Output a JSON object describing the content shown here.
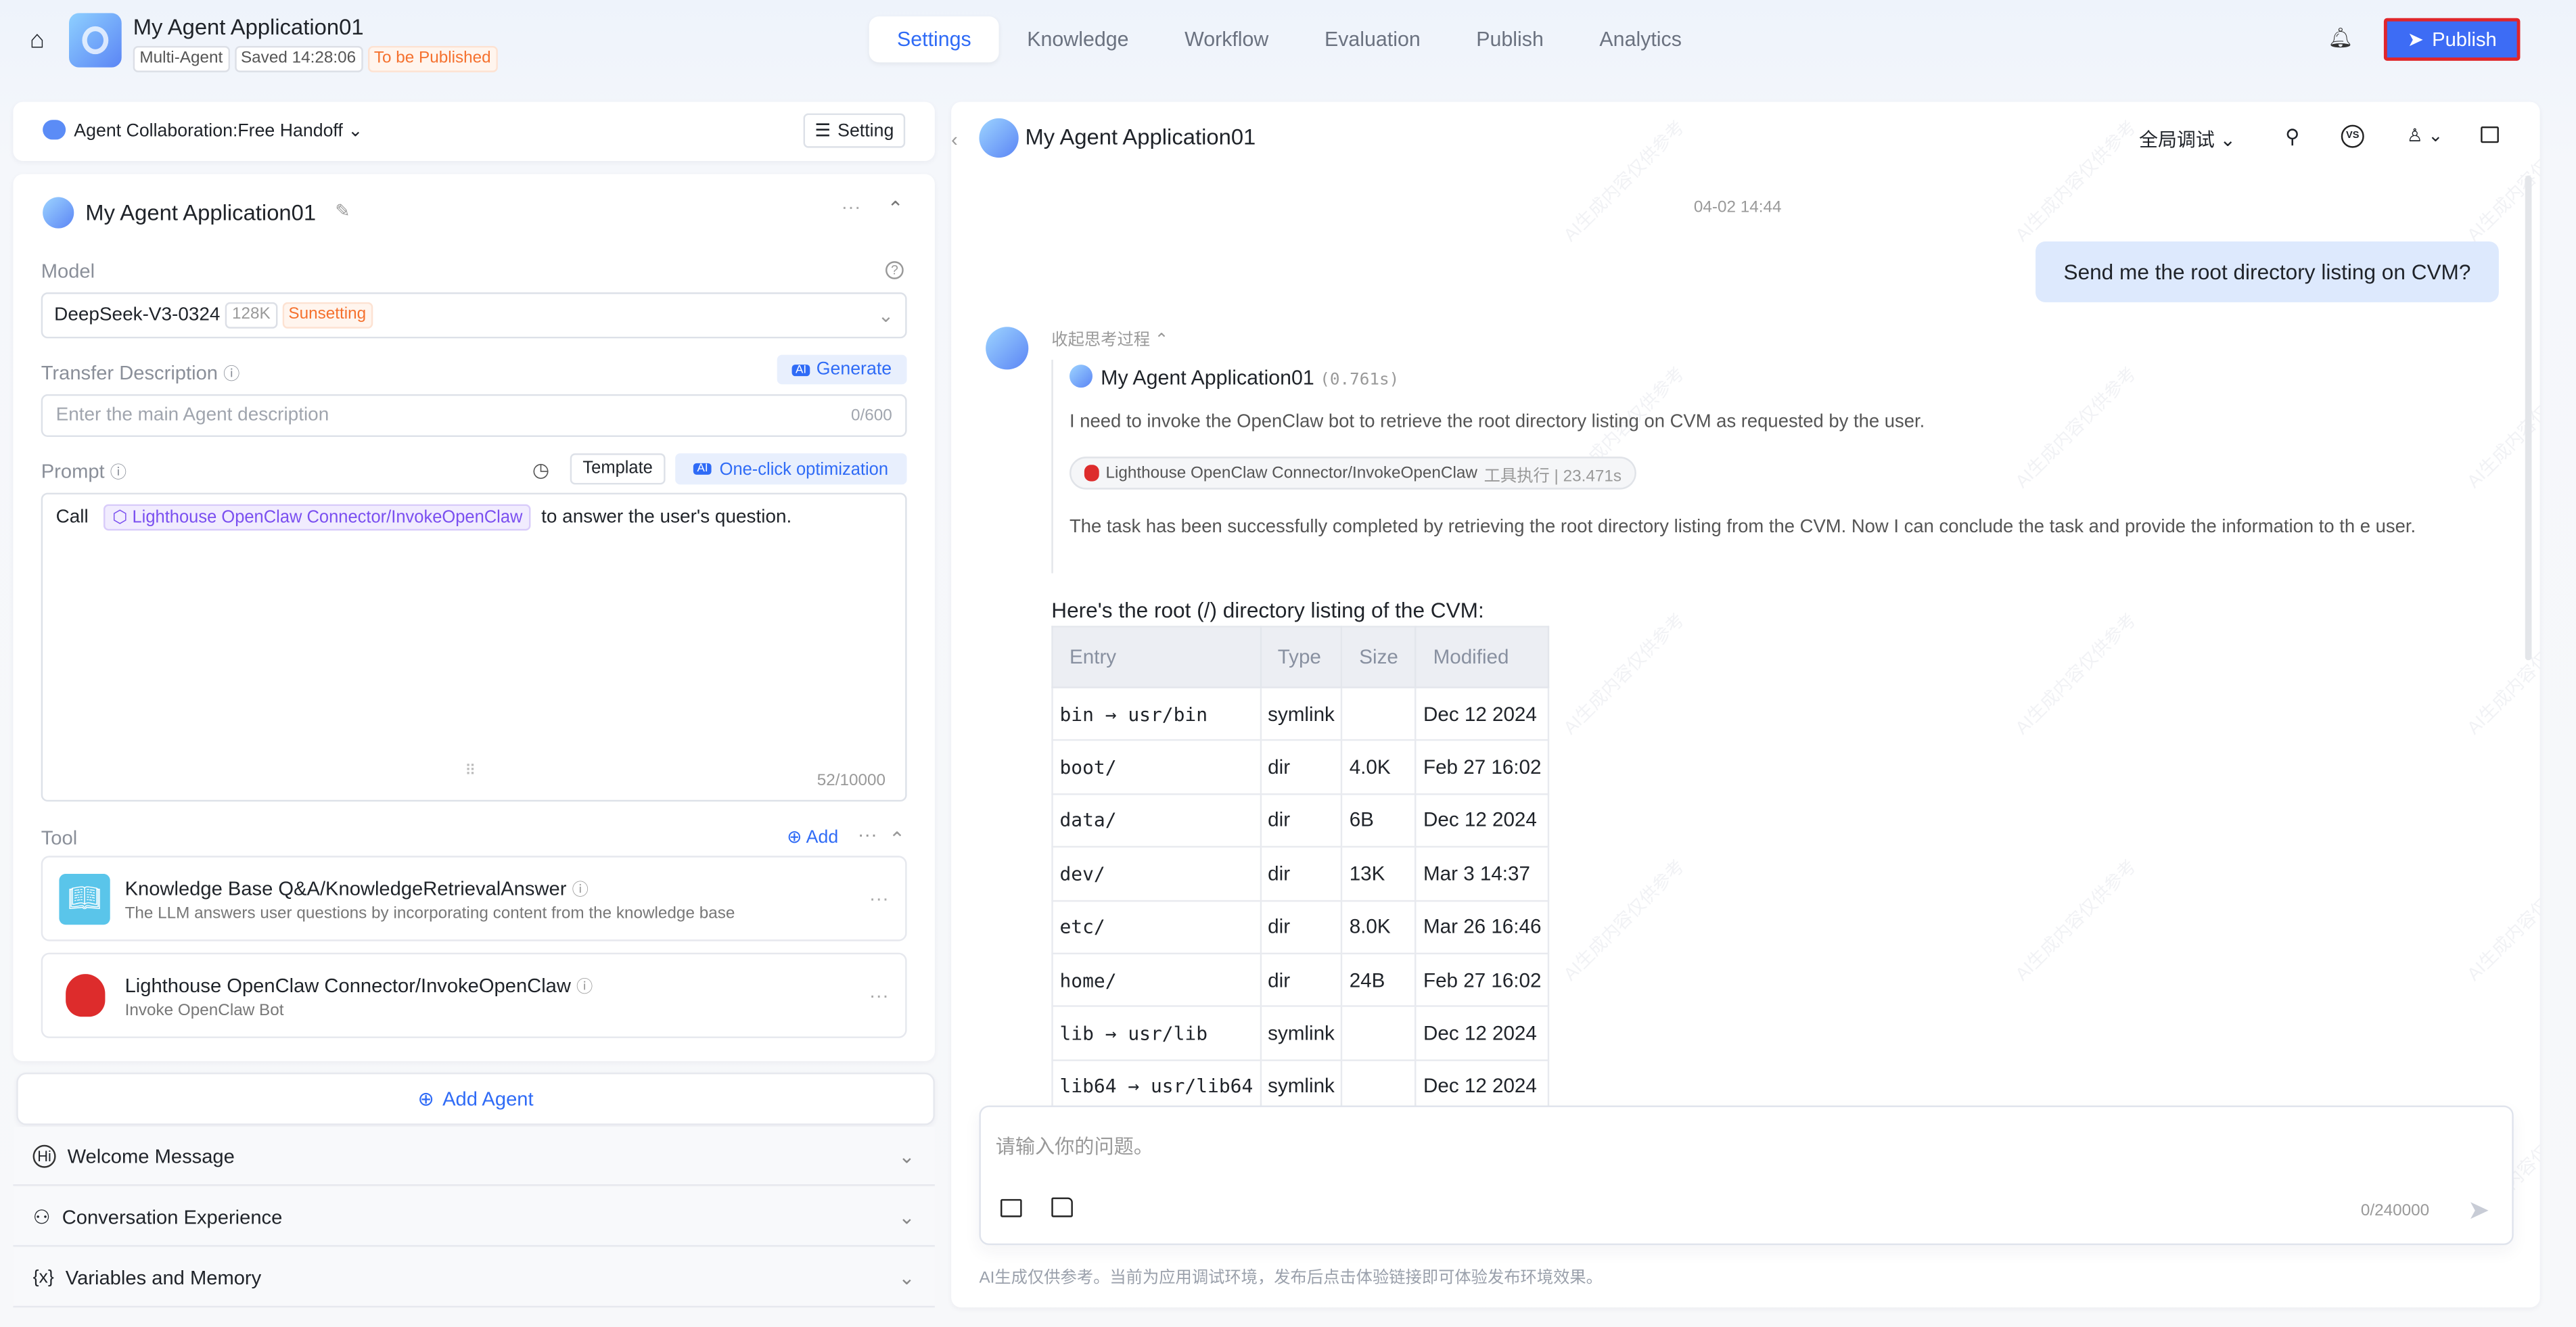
{
  "header": {
    "app_title": "My Agent Application01",
    "tags": [
      "Multi-Agent",
      "Saved 14:28:06",
      "To be Published"
    ],
    "nav": [
      "Settings",
      "Knowledge",
      "Workflow",
      "Evaluation",
      "Publish",
      "Analytics"
    ],
    "active_tab": "Settings",
    "publish_label": "Publish"
  },
  "left": {
    "collab_label": "Agent Collaboration:Free Handoff",
    "setting_label": "Setting",
    "agent_name": "My Agent Application01",
    "model_label": "Model",
    "model_value": "DeepSeek-V3-0324",
    "model_ctx": "128K",
    "model_status": "Sunsetting",
    "transfer_label": "Transfer Description",
    "generate_label": "Generate",
    "transfer_placeholder": "Enter the main Agent description",
    "transfer_count": "0/600",
    "prompt_label": "Prompt",
    "template_label": "Template",
    "optimize_label": "One-click optimization",
    "prompt_before": "Call",
    "prompt_chip": "Lighthouse OpenClaw Connector/InvokeOpenClaw",
    "prompt_after": "to answer the user's question.",
    "prompt_count": "52/10000",
    "tool_label": "Tool",
    "tool_add": "Add",
    "tools": [
      {
        "name": "Knowledge Base Q&A/KnowledgeRetrievalAnswer",
        "desc": "The LLM answers user questions by incorporating content from the knowledge base",
        "icon": "book-icon"
      },
      {
        "name": "Lighthouse OpenClaw Connector/InvokeOpenClaw",
        "desc": "Invoke OpenClaw Bot",
        "icon": "red-robot-icon"
      }
    ],
    "add_agent": "Add Agent",
    "sections": [
      "Welcome Message",
      "Conversation Experience",
      "Variables and Memory"
    ]
  },
  "chat": {
    "title": "My Agent Application01",
    "debug_mode": "全局调试",
    "timestamp": "04-02 14:44",
    "user_msg": "Send me the root directory listing on CVM?",
    "collapse_thinking": "收起思考过程",
    "agent_name": "My Agent Application01",
    "agent_time": "(0.761s)",
    "thought1": "I need to invoke the OpenClaw bot to retrieve the root directory listing on CVM as requested by the user.",
    "tool_call": "Lighthouse OpenClaw Connector/InvokeOpenClaw",
    "tool_call_meta": "工具执行 | 23.471s",
    "thought2": "The task has been successfully completed by retrieving the root directory listing from the CVM. Now I can conclude the task and provide the information to th e user.",
    "answer_intro": "Here's the root (/) directory listing of the CVM:",
    "table": {
      "headers": [
        "Entry",
        "Type",
        "Size",
        "Modified"
      ],
      "rows": [
        [
          "bin → usr/bin",
          "symlink",
          "",
          "Dec 12 2024"
        ],
        [
          "boot/",
          "dir",
          "4.0K",
          "Feb 27 16:02"
        ],
        [
          "data/",
          "dir",
          "6B",
          "Dec 12 2024"
        ],
        [
          "dev/",
          "dir",
          "13K",
          "Mar 3 14:37"
        ],
        [
          "etc/",
          "dir",
          "8.0K",
          "Mar 26 16:46"
        ],
        [
          "home/",
          "dir",
          "24B",
          "Feb 27 16:02"
        ],
        [
          "lib → usr/lib",
          "symlink",
          "",
          "Dec 12 2024"
        ],
        [
          "lib64 → usr/lib64",
          "symlink",
          "",
          "Dec 12 2024"
        ]
      ]
    },
    "input_placeholder": "请输入你的问题。",
    "input_count": "0/240000",
    "disclaimer": "AI生成仅供参考。当前为应用调试环境，发布后点击体验链接即可体验发布环境效果。",
    "watermark": "AI生成内容仅供参考"
  },
  "colors": {
    "accent": "#2f6bf6",
    "publish_bg": "#3d6cf5",
    "publish_border": "#e0262b",
    "warning": "#f5712e",
    "user_bubble": "#dde9fd"
  }
}
